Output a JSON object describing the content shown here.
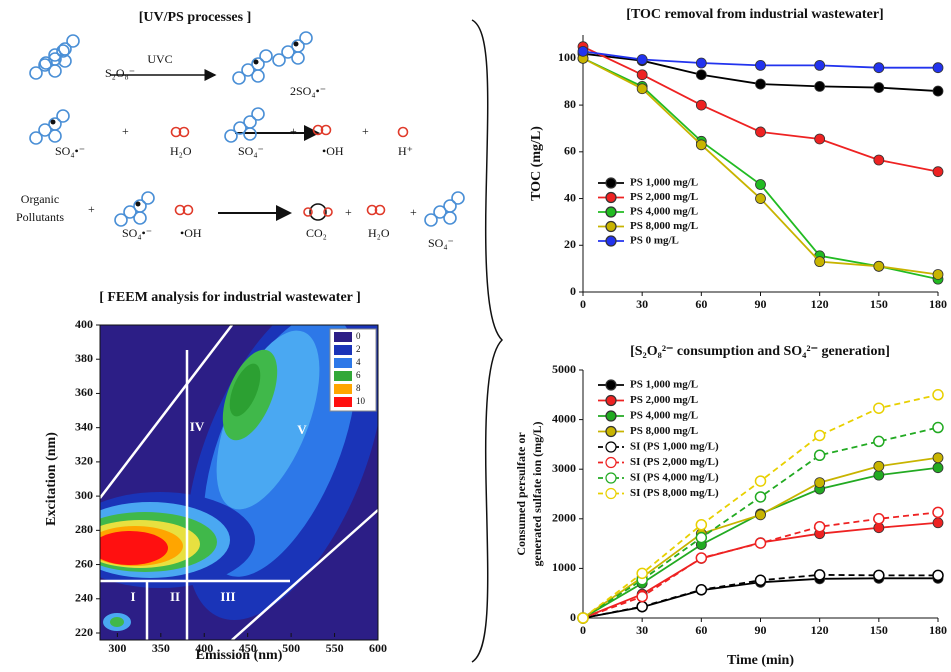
{
  "diagram": {
    "title": "[UV/PS processes ]",
    "arrow_label": "UVC",
    "row1": [
      "S₂O₈⁻",
      "2SO₄•⁻"
    ],
    "row2": [
      "SO₄•⁻",
      "+",
      "H₂O",
      "SO₄⁻",
      "+",
      "•OH",
      "+",
      "H⁺"
    ],
    "row3": [
      "Organic",
      "Pollutants",
      "+",
      "SO₄•⁻",
      "•OH",
      "CO₂",
      "+",
      "H₂O",
      "+",
      "SO₄⁻"
    ]
  },
  "chart_data": [
    {
      "type": "contour",
      "title": "[ FEEM analysis for industrial wastewater ]",
      "xlabel": "Emission (nm)",
      "ylabel": "Excitation (nm)",
      "xlim": [
        280,
        600
      ],
      "ylim": [
        220,
        400
      ],
      "xticks": [
        300,
        350,
        400,
        450,
        500,
        550,
        600
      ],
      "yticks": [
        220,
        240,
        260,
        280,
        300,
        320,
        340,
        360,
        380,
        400
      ],
      "colorbar": {
        "levels": [
          0,
          2,
          4,
          6,
          8,
          10
        ],
        "colors": [
          "#2c1e86",
          "#1a34b8",
          "#2d78e8",
          "#32a838",
          "#ffa500",
          "#ff1010"
        ]
      },
      "region_labels": [
        "I",
        "II",
        "III",
        "IV",
        "V"
      ]
    },
    {
      "type": "line",
      "title": "[TOC removal from industrial wastewater]",
      "ylabel": "TOC (mg/L)",
      "x": [
        0,
        30,
        60,
        90,
        120,
        150,
        180
      ],
      "xlim": [
        0,
        180
      ],
      "xticks": [
        0,
        30,
        60,
        90,
        120,
        150,
        180
      ],
      "ylim": [
        0,
        110
      ],
      "yticks": [
        0,
        20,
        40,
        60,
        80,
        100
      ],
      "legend": "lower left",
      "series": [
        {
          "name": "PS 1,000 mg/L",
          "color": "#000000",
          "values": [
            102,
            99,
            93,
            89,
            88,
            87.5,
            86
          ]
        },
        {
          "name": "PS 2,000 mg/L",
          "color": "#ee2222",
          "values": [
            105,
            93,
            80,
            68.5,
            65.5,
            56.5,
            51.5
          ]
        },
        {
          "name": "PS 4,000 mg/L",
          "color": "#22bb22",
          "values": [
            100,
            88,
            64.5,
            46,
            15.5,
            11,
            5.5
          ]
        },
        {
          "name": "PS 8,000 mg/L",
          "color": "#c8b400",
          "values": [
            100,
            87,
            63,
            40,
            13,
            11,
            7.5
          ]
        },
        {
          "name": "PS 0 mg/L",
          "color": "#2233ee",
          "values": [
            103,
            99.5,
            98,
            97,
            97,
            96,
            96
          ]
        }
      ]
    },
    {
      "type": "line",
      "title": "[S₂O₈²⁻ consumption and SO₄²⁻ generation]",
      "xlabel": "Time (min)",
      "ylabel": [
        "Consumed persulfate or",
        "generated sulfate ion (mg/L)"
      ],
      "x": [
        0,
        30,
        60,
        90,
        120,
        150,
        180
      ],
      "xlim": [
        0,
        180
      ],
      "xticks": [
        0,
        30,
        60,
        90,
        120,
        150,
        180
      ],
      "ylim": [
        0,
        5000
      ],
      "yticks": [
        0,
        1000,
        2000,
        3000,
        4000,
        5000
      ],
      "legend": "upper left",
      "series": [
        {
          "name": "PS 1,000 mg/L",
          "color": "#000000",
          "values": [
            0,
            220,
            560,
            720,
            790,
            800,
            800
          ]
        },
        {
          "name": "PS 2,000 mg/L",
          "color": "#ee2222",
          "values": [
            0,
            480,
            1200,
            1520,
            1700,
            1820,
            1920
          ]
        },
        {
          "name": "PS 4,000 mg/L",
          "color": "#22aa22",
          "values": [
            0,
            700,
            1480,
            2100,
            2600,
            2880,
            3030
          ]
        },
        {
          "name": "PS 8,000 mg/L",
          "color": "#c8b400",
          "values": [
            0,
            820,
            1700,
            2080,
            2730,
            3060,
            3230
          ]
        },
        {
          "name": "SI (PS 1,000 mg/L)",
          "color": "#000000",
          "linestyle": "dashed",
          "marker_fill": "none",
          "values": [
            0,
            230,
            570,
            760,
            870,
            860,
            860
          ]
        },
        {
          "name": "SI (PS 2,000 mg/L)",
          "color": "#ee2222",
          "linestyle": "dashed",
          "marker_fill": "none",
          "values": [
            0,
            430,
            1210,
            1510,
            1840,
            2000,
            2130
          ]
        },
        {
          "name": "SI (PS 4,000 mg/L)",
          "color": "#22aa22",
          "linestyle": "dashed",
          "marker_fill": "none",
          "values": [
            0,
            770,
            1620,
            2440,
            3280,
            3560,
            3840
          ]
        },
        {
          "name": "SI (PS 8,000 mg/L)",
          "color": "#e8d000",
          "linestyle": "dashed",
          "marker_fill": "none",
          "values": [
            0,
            900,
            1880,
            2760,
            3680,
            4230,
            4500
          ]
        }
      ]
    }
  ]
}
